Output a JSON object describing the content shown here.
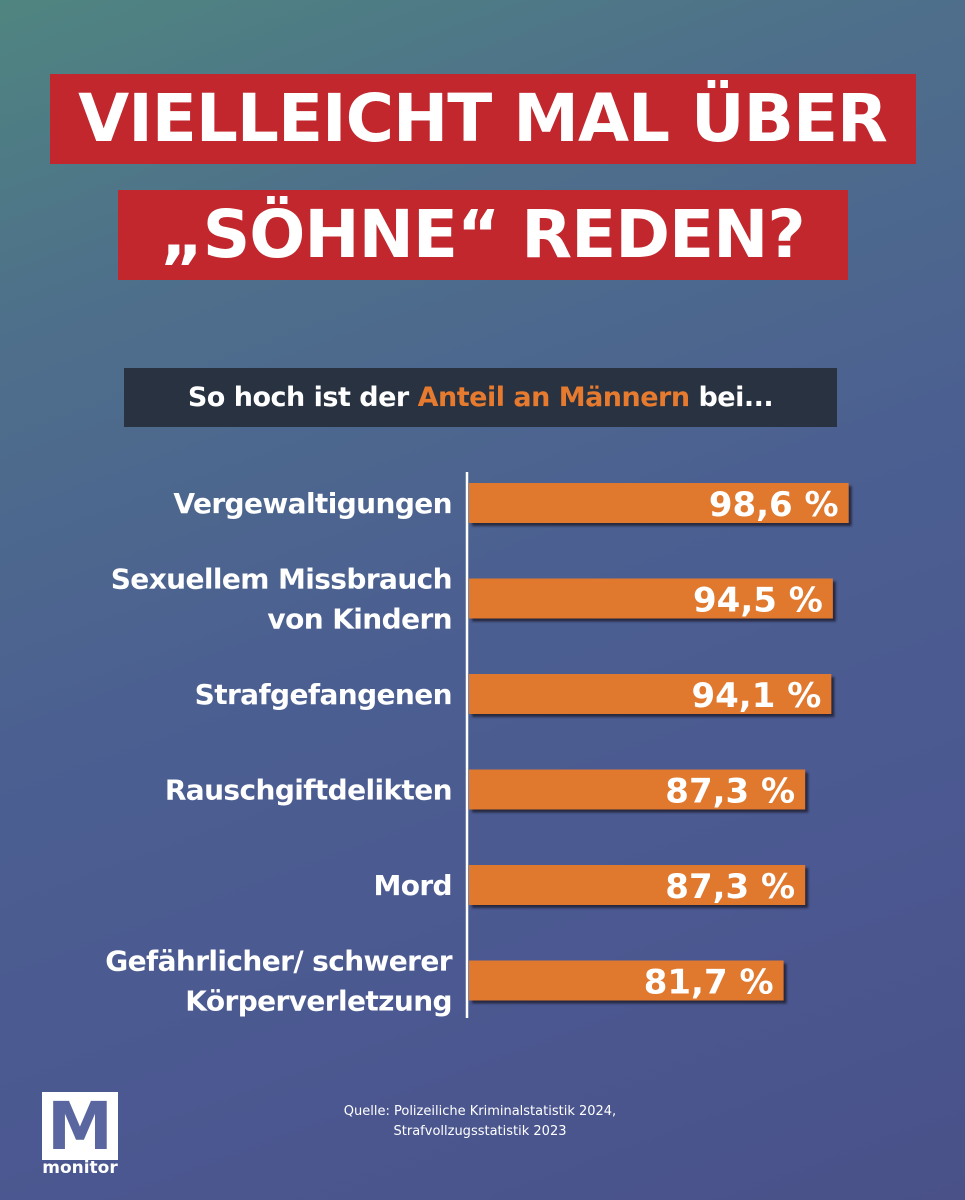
{
  "headline": {
    "line1": "VIELLEICHT MAL ÜBER",
    "line2": "„SÖHNE“ REDEN?"
  },
  "subtitle": {
    "before": "So hoch ist der ",
    "accent": "Anteil an Männern",
    "after": " bei..."
  },
  "chart_data": {
    "type": "bar",
    "orientation": "horizontal",
    "title": "So hoch ist der Anteil an Männern bei...",
    "categories": [
      [
        "Vergewaltigungen"
      ],
      [
        "Sexuellem Missbrauch",
        "von Kindern"
      ],
      [
        "Strafgefangenen"
      ],
      [
        "Rauschgiftdelikten"
      ],
      [
        "Mord"
      ],
      [
        "Gefährlicher/ schwerer",
        "Körperverletzung"
      ]
    ],
    "values": [
      98.6,
      94.5,
      94.1,
      87.3,
      87.3,
      81.7
    ],
    "value_labels": [
      "98,6 %",
      "94,5 %",
      "94,1 %",
      "87,3 %",
      "87,3 %",
      "81,7 %"
    ],
    "unit": "%",
    "xlim": [
      0,
      100
    ],
    "bar_color": "#e0782f",
    "grid": false,
    "legend": "none"
  },
  "source": {
    "line1": "Quelle: Polizeiliche Kriminalstatistik 2024,",
    "line2": "Strafvollzugsstatistik 2023"
  },
  "logo": {
    "glyph": "M",
    "text": "monitor"
  },
  "colors": {
    "headline_bg": "#c1272d",
    "subtitle_bg": "#283240",
    "accent": "#e67a2f"
  }
}
